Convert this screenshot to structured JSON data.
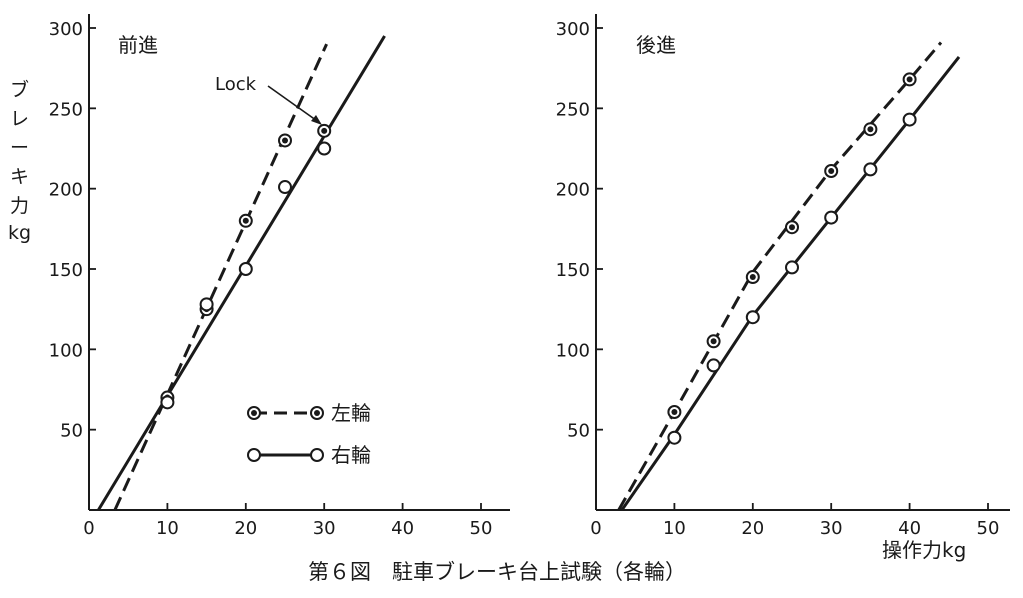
{
  "figure_title": "第６図　駐車ブレーキ台上試験（各輪）",
  "y_axis_label": [
    "ブ",
    "レ",
    "ー",
    "キ",
    "力",
    "kg"
  ],
  "x_axis_label": "操作力kg",
  "legend": {
    "left_wheel": "左輪",
    "right_wheel": "右輪"
  },
  "colors": {
    "ink": "#1a1a1a",
    "background": "#ffffff",
    "open_marker_fill": "#ffffff"
  },
  "chart_data": [
    {
      "type": "line",
      "title": "前進",
      "xlabel": "",
      "ylabel": "ブレーキ力kg",
      "xlim": [
        0,
        50
      ],
      "ylim": [
        0,
        300
      ],
      "x_ticks": [
        "0",
        "10",
        "20",
        "30",
        "40",
        "50"
      ],
      "y_ticks": [
        "50",
        "100",
        "150",
        "200",
        "250",
        "300"
      ],
      "grid": false,
      "legend_position": "bottom-right",
      "annotation": "Lock",
      "series": [
        {
          "name": "左輪",
          "line_style": "dashed",
          "marker": "filled-center",
          "points": [
            [
              10,
              70
            ],
            [
              15,
              125
            ],
            [
              20,
              180
            ],
            [
              25,
              230
            ],
            [
              30,
              236
            ]
          ],
          "fit_line": [
            [
              3.3,
              0
            ],
            [
              30.3,
              290
            ]
          ]
        },
        {
          "name": "右輪",
          "line_style": "solid",
          "marker": "open",
          "points": [
            [
              10,
              67
            ],
            [
              15,
              128
            ],
            [
              20,
              150
            ],
            [
              25,
              201
            ],
            [
              30,
              225
            ]
          ],
          "fit_line": [
            [
              1.2,
              0
            ],
            [
              37.7,
              295
            ]
          ]
        }
      ]
    },
    {
      "type": "line",
      "title": "後進",
      "xlabel": "操作力kg",
      "ylabel": "",
      "xlim": [
        0,
        50
      ],
      "ylim": [
        0,
        300
      ],
      "x_ticks": [
        "0",
        "10",
        "20",
        "30",
        "40",
        "50"
      ],
      "y_ticks": [
        "50",
        "100",
        "150",
        "200",
        "250",
        "300"
      ],
      "grid": false,
      "legend_position": "none",
      "series": [
        {
          "name": "左輪",
          "line_style": "dashed",
          "marker": "filled-center",
          "points": [
            [
              10,
              61
            ],
            [
              15,
              105
            ],
            [
              20,
              145
            ],
            [
              25,
              176
            ],
            [
              30,
              211
            ],
            [
              35,
              237
            ],
            [
              40,
              268
            ]
          ],
          "fit_line": [
            [
              2.9,
              0
            ],
            [
              10,
              61
            ],
            [
              20,
              148
            ],
            [
              30,
              212
            ],
            [
              40,
              268
            ],
            [
              44,
              291
            ]
          ]
        },
        {
          "name": "右輪",
          "line_style": "solid",
          "marker": "open",
          "points": [
            [
              10,
              45
            ],
            [
              15,
              90
            ],
            [
              20,
              120
            ],
            [
              25,
              151
            ],
            [
              30,
              182
            ],
            [
              35,
              212
            ],
            [
              40,
              243
            ]
          ],
          "fit_line": [
            [
              3.3,
              0
            ],
            [
              10,
              47
            ],
            [
              20,
              121
            ],
            [
              30,
              182
            ],
            [
              40,
              243
            ],
            [
              46.3,
              282
            ]
          ]
        }
      ]
    }
  ]
}
